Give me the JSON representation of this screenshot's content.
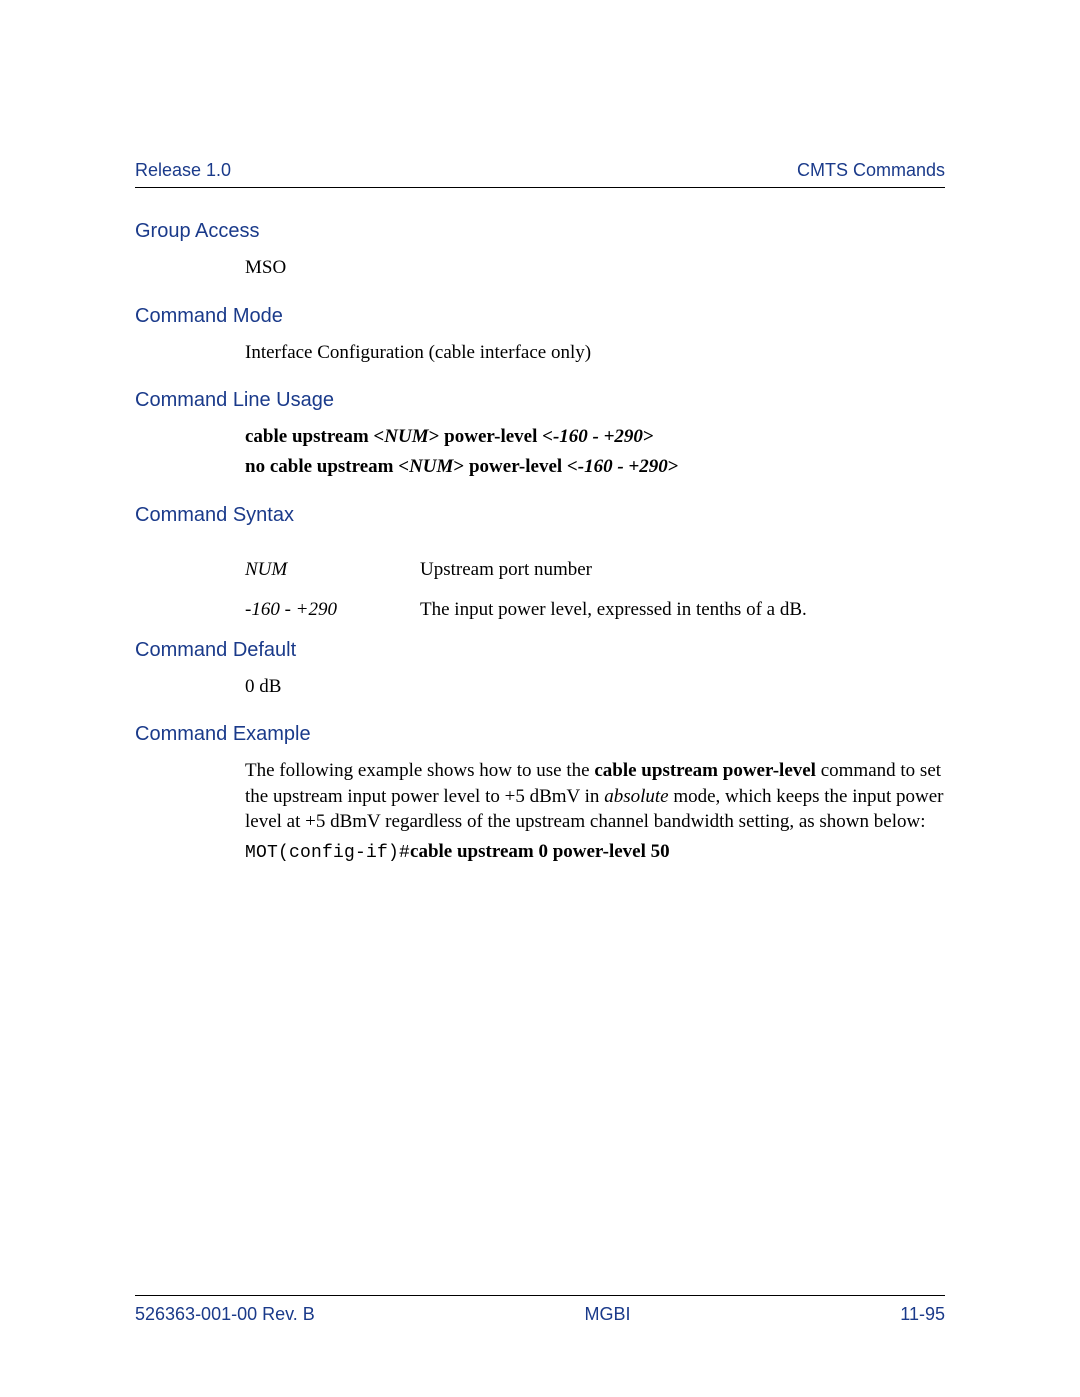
{
  "header": {
    "left": "Release 1.0",
    "right": "CMTS Commands"
  },
  "sections": {
    "group_access": {
      "heading": "Group Access",
      "body": "MSO"
    },
    "command_mode": {
      "heading": "Command Mode",
      "body": "Interface Configuration (cable interface only)"
    },
    "command_line_usage": {
      "heading": "Command Line Usage",
      "line1": {
        "p1": "cable upstream <",
        "p2": "NUM",
        "p3": "> power-level <",
        "p4": "-160 - +290",
        "p5": ">"
      },
      "line2": {
        "p1": "no cable upstream <",
        "p2": "NUM",
        "p3": "> power-level <",
        "p4": "-160 - +290",
        "p5": ">"
      }
    },
    "command_syntax": {
      "heading": "Command Syntax",
      "rows": [
        {
          "key": "NUM",
          "desc": "Upstream port number"
        },
        {
          "key": "-160 - +290",
          "desc": "The input power level, expressed in tenths of a dB."
        }
      ]
    },
    "command_default": {
      "heading": "Command Default",
      "body": "0 dB"
    },
    "command_example": {
      "heading": "Command Example",
      "intro": {
        "t1": "The following example shows how to use the ",
        "t2": "cable upstream power-level",
        "t3": " command to set the upstream input power level to +5 dBmV in ",
        "t4": "absolute",
        "t5": " mode, which keeps the input power level at +5 dBmV regardless of the upstream channel bandwidth setting, as shown below:"
      },
      "cmd": {
        "prompt": "MOT(config-if)#",
        "bold": "cable upstream 0 power-level 50"
      }
    }
  },
  "footer": {
    "left": "526363-001-00 Rev. B",
    "center": "MGBI",
    "right": "11-95"
  },
  "colors": {
    "heading_color": "#1a3a8a",
    "text_color": "#000000",
    "background": "#ffffff"
  }
}
